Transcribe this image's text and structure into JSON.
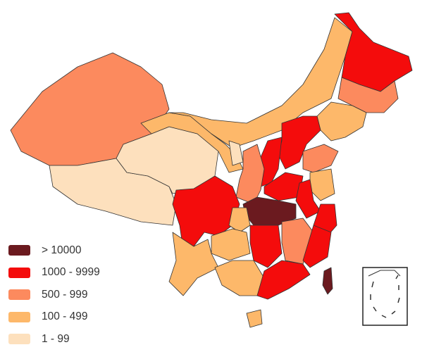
{
  "legend": [
    {
      "label": "> 10000",
      "color": "#6b1a1f"
    },
    {
      "label": "1000 - 9999",
      "color": "#f40c0c"
    },
    {
      "label": "500 - 999",
      "color": "#fc8a5e"
    },
    {
      "label": "100 - 499",
      "color": "#fdb86a"
    },
    {
      "label": "1 - 99",
      "color": "#fde0bd"
    }
  ],
  "regions": [
    {
      "id": "xinjiang",
      "cat": 2
    },
    {
      "id": "tibet",
      "cat": 4
    },
    {
      "id": "qinghai",
      "cat": 4
    },
    {
      "id": "gansu",
      "cat": 3
    },
    {
      "id": "inner-mongolia",
      "cat": 3
    },
    {
      "id": "heilongjiang",
      "cat": 1
    },
    {
      "id": "jilin",
      "cat": 2
    },
    {
      "id": "liaoning",
      "cat": 3
    },
    {
      "id": "hebei",
      "cat": 1
    },
    {
      "id": "shanxi",
      "cat": 1
    },
    {
      "id": "shaanxi",
      "cat": 2
    },
    {
      "id": "ningxia",
      "cat": 4
    },
    {
      "id": "shandong",
      "cat": 2
    },
    {
      "id": "henan",
      "cat": 1
    },
    {
      "id": "jiangsu",
      "cat": 3
    },
    {
      "id": "anhui",
      "cat": 1
    },
    {
      "id": "hubei",
      "cat": 0
    },
    {
      "id": "zhejiang",
      "cat": 1
    },
    {
      "id": "sichuan",
      "cat": 1
    },
    {
      "id": "chongqing",
      "cat": 3
    },
    {
      "id": "guizhou",
      "cat": 3
    },
    {
      "id": "yunnan",
      "cat": 3
    },
    {
      "id": "hunan",
      "cat": 1
    },
    {
      "id": "jiangxi",
      "cat": 2
    },
    {
      "id": "fujian",
      "cat": 1
    },
    {
      "id": "guangxi",
      "cat": 3
    },
    {
      "id": "guangdong",
      "cat": 1
    },
    {
      "id": "hainan",
      "cat": 3
    },
    {
      "id": "taiwan",
      "cat": 0
    }
  ]
}
